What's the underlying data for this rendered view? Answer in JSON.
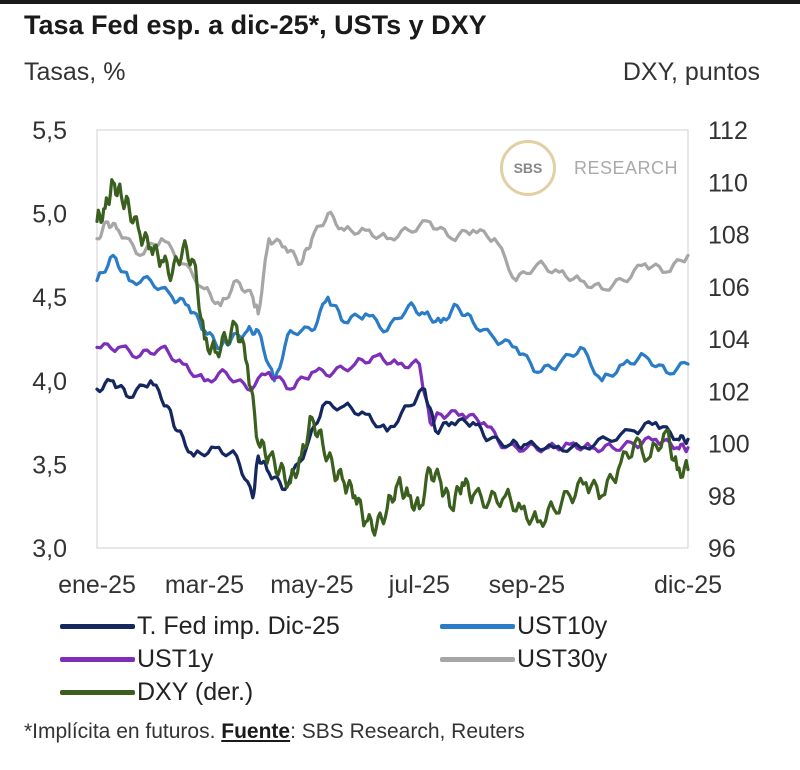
{
  "header": {
    "title": "Tasa Fed esp. a dic-25*, USTs y DXY",
    "left_axis_title": "Tasas, %",
    "right_axis_title": "DXY, puntos"
  },
  "logo": {
    "mark": "SBS",
    "text": "RESEARCH"
  },
  "footer": {
    "note": "*Implícita en futuros. ",
    "source_label": "Fuente",
    "source_text": ": SBS Research, Reuters"
  },
  "chart_data": {
    "type": "line",
    "title": "Tasa Fed esp. a dic-25*, USTs y DXY",
    "ylabel": "Tasas, %",
    "y2label": "DXY, puntos",
    "ylim": [
      3.0,
      5.5
    ],
    "y2lim": [
      96,
      112
    ],
    "yticks": [
      "5,5",
      "5,0",
      "4,5",
      "4,0",
      "3,5",
      "3,0"
    ],
    "y2ticks": [
      "112",
      "110",
      "108",
      "106",
      "104",
      "102",
      "100",
      "98",
      "96"
    ],
    "xticks": [
      "ene-25",
      "mar-25",
      "may-25",
      "jul-25",
      "sep-25",
      "dic-25"
    ],
    "xtick_months": [
      0,
      2,
      4,
      6,
      8,
      11
    ],
    "xrange_months": [
      0,
      11
    ],
    "grid": false,
    "legend_position": "bottom",
    "series": [
      {
        "name": "T. Fed imp. Dic-25",
        "axis": "left",
        "color": "#14285f",
        "x": [
          0,
          0.3,
          0.6,
          1.0,
          1.3,
          1.5,
          1.8,
          2.2,
          2.6,
          2.9,
          3.0,
          3.2,
          3.5,
          3.9,
          4.2,
          4.6,
          5.0,
          5.4,
          5.8,
          6.1,
          6.3,
          6.6,
          7.0,
          7.3,
          7.7,
          8.0,
          8.5,
          9.0,
          9.5,
          10.0,
          10.4,
          10.8,
          11.0
        ],
        "values": [
          3.95,
          4.0,
          3.9,
          4.0,
          3.85,
          3.7,
          3.55,
          3.6,
          3.55,
          3.3,
          3.55,
          3.45,
          3.35,
          3.6,
          3.85,
          3.85,
          3.8,
          3.7,
          3.85,
          3.95,
          3.7,
          3.75,
          3.75,
          3.65,
          3.62,
          3.62,
          3.6,
          3.6,
          3.65,
          3.7,
          3.75,
          3.65,
          3.65
        ]
      },
      {
        "name": "UST10y",
        "axis": "left",
        "color": "#2a7cc7",
        "x": [
          0,
          0.3,
          0.6,
          1.0,
          1.4,
          1.7,
          2.0,
          2.3,
          2.5,
          2.8,
          3.0,
          3.3,
          3.6,
          4.0,
          4.3,
          4.6,
          5.0,
          5.4,
          5.8,
          6.1,
          6.4,
          6.7,
          7.0,
          7.4,
          7.8,
          8.2,
          8.6,
          9.0,
          9.4,
          9.8,
          10.2,
          10.6,
          11.0
        ],
        "values": [
          4.6,
          4.75,
          4.6,
          4.6,
          4.5,
          4.45,
          4.3,
          4.2,
          4.25,
          4.3,
          4.3,
          4.0,
          4.3,
          4.3,
          4.5,
          4.35,
          4.4,
          4.3,
          4.45,
          4.4,
          4.35,
          4.45,
          4.35,
          4.25,
          4.2,
          4.05,
          4.1,
          4.2,
          4.0,
          4.1,
          4.15,
          4.05,
          4.1
        ]
      },
      {
        "name": "UST1y",
        "axis": "left",
        "color": "#7d2fb9",
        "x": [
          0,
          0.4,
          0.8,
          1.2,
          1.6,
          2.0,
          2.4,
          2.8,
          3.2,
          3.6,
          4.0,
          4.4,
          4.8,
          5.2,
          5.6,
          6.0,
          6.2,
          6.4,
          6.8,
          7.2,
          7.6,
          8.0,
          8.4,
          8.8,
          9.2,
          9.6,
          10.0,
          10.4,
          10.8,
          11.0
        ],
        "values": [
          4.2,
          4.2,
          4.15,
          4.2,
          4.1,
          4.0,
          4.05,
          3.95,
          4.05,
          3.95,
          4.05,
          4.05,
          4.1,
          4.15,
          4.1,
          4.1,
          3.75,
          3.8,
          3.8,
          3.75,
          3.6,
          3.6,
          3.6,
          3.62,
          3.6,
          3.6,
          3.62,
          3.65,
          3.6,
          3.6
        ]
      },
      {
        "name": "UST30y",
        "axis": "left",
        "color": "#a6a6a6",
        "x": [
          0,
          0.2,
          0.4,
          0.8,
          1.2,
          1.6,
          2.0,
          2.3,
          2.6,
          2.9,
          3.0,
          3.2,
          3.5,
          3.8,
          4.0,
          4.3,
          4.6,
          5.0,
          5.4,
          5.8,
          6.2,
          6.6,
          7.0,
          7.4,
          7.8,
          8.2,
          8.6,
          9.0,
          9.4,
          9.8,
          10.2,
          10.6,
          11.0
        ],
        "values": [
          4.85,
          4.95,
          4.9,
          4.75,
          4.85,
          4.7,
          4.55,
          4.45,
          4.6,
          4.5,
          4.4,
          4.85,
          4.8,
          4.7,
          4.85,
          5.0,
          4.9,
          4.9,
          4.85,
          4.9,
          4.95,
          4.85,
          4.9,
          4.85,
          4.6,
          4.7,
          4.65,
          4.6,
          4.55,
          4.6,
          4.7,
          4.65,
          4.75
        ]
      },
      {
        "name": "DXY (der.)",
        "axis": "right",
        "color": "#3a5f1e",
        "x": [
          0,
          0.15,
          0.3,
          0.45,
          0.6,
          0.8,
          1.0,
          1.2,
          1.4,
          1.6,
          1.8,
          2.0,
          2.2,
          2.4,
          2.6,
          2.8,
          3.0,
          3.2,
          3.4,
          3.6,
          3.8,
          4.0,
          4.2,
          4.4,
          4.6,
          4.8,
          5.0,
          5.2,
          5.4,
          5.6,
          5.8,
          6.0,
          6.2,
          6.4,
          6.6,
          6.8,
          7.0,
          7.3,
          7.6,
          7.9,
          8.2,
          8.5,
          8.8,
          9.1,
          9.4,
          9.7,
          10.0,
          10.3,
          10.6,
          10.8,
          11.0
        ],
        "values": [
          108.5,
          109,
          110,
          109.5,
          109,
          108,
          107.5,
          107,
          106.5,
          107.5,
          107,
          104,
          103.5,
          104,
          104.5,
          103,
          100,
          99.5,
          99,
          98.5,
          99.5,
          101,
          100,
          99,
          98.5,
          98,
          97,
          96.8,
          97.5,
          98.5,
          98,
          97.5,
          99,
          98.5,
          97.5,
          98.5,
          98,
          97.8,
          98,
          97.5,
          97,
          97.5,
          98,
          98.5,
          98,
          99,
          100,
          99.5,
          100.5,
          99,
          99
        ]
      }
    ]
  },
  "legend": {
    "items": [
      {
        "label": "T. Fed imp. Dic-25",
        "color": "#14285f"
      },
      {
        "label": "UST10y",
        "color": "#2a7cc7"
      },
      {
        "label": "UST1y",
        "color": "#7d2fb9"
      },
      {
        "label": "UST30y",
        "color": "#a6a6a6"
      },
      {
        "label": "DXY (der.)",
        "color": "#3a5f1e"
      }
    ]
  }
}
